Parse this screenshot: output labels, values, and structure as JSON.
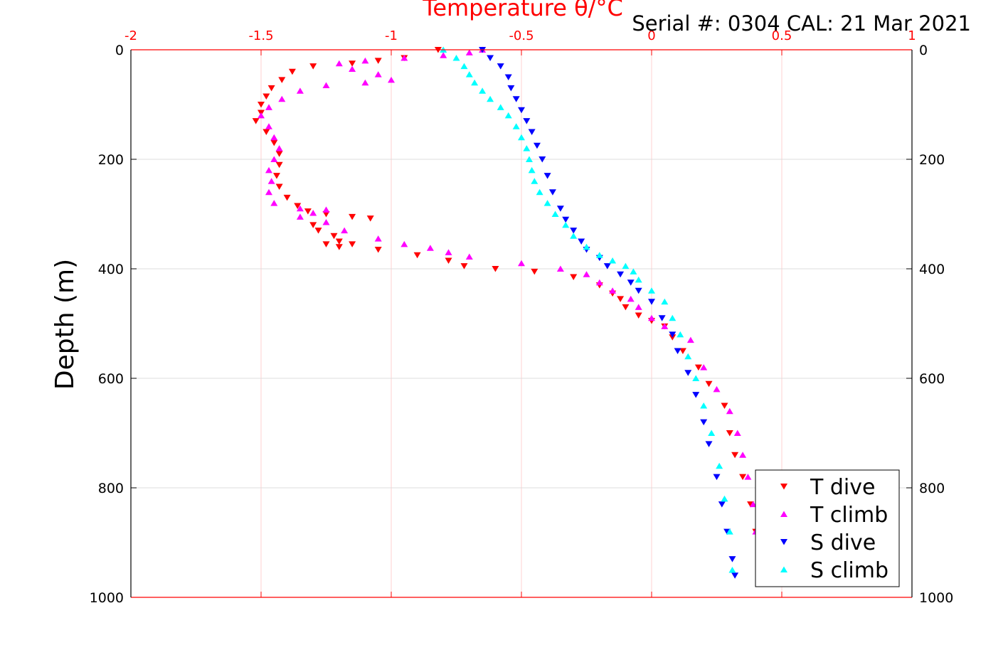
{
  "chart_data": {
    "type": "scatter",
    "title": "Temperature θ/°C",
    "annotation": "Serial #: 0304  CAL: 21 Mar 2021",
    "ylabel": "Depth (m)",
    "xlim": [
      -2,
      1
    ],
    "ylim": [
      0,
      1000
    ],
    "y_reversed": true,
    "x_ticks": [
      "-2",
      "-1.5",
      "-1",
      "-0.5",
      "0",
      "0.5",
      "1"
    ],
    "y_ticks": [
      "0",
      "200",
      "400",
      "600",
      "800",
      "1000"
    ],
    "y_ticks_right": [
      "0",
      "200",
      "400",
      "600",
      "800",
      "1000"
    ],
    "grid": true,
    "legend_position": "bottom-right",
    "series": [
      {
        "name": "T dive",
        "color": "#ff0000",
        "marker": "triangle-down",
        "x": [
          -0.82,
          -0.95,
          -1.05,
          -1.15,
          -1.3,
          -1.38,
          -1.42,
          -1.46,
          -1.48,
          -1.5,
          -1.5,
          -1.52,
          -1.48,
          -1.45,
          -1.43,
          -1.43,
          -1.44,
          -1.43,
          -1.4,
          -1.36,
          -1.32,
          -1.25,
          -1.15,
          -1.08,
          -1.3,
          -1.28,
          -1.22,
          -1.2,
          -1.15,
          -1.25,
          -1.2,
          -1.05,
          -0.9,
          -0.78,
          -0.72,
          -0.6,
          -0.45,
          -0.3,
          -0.2,
          -0.15,
          -0.12,
          -0.1,
          -0.05,
          0.0,
          0.05,
          0.08,
          0.12,
          0.18,
          0.22,
          0.28,
          0.3,
          0.32,
          0.35,
          0.38,
          0.4
        ],
        "y": [
          0,
          15,
          20,
          25,
          30,
          40,
          55,
          70,
          85,
          100,
          115,
          130,
          150,
          170,
          190,
          210,
          230,
          250,
          270,
          285,
          295,
          300,
          305,
          308,
          320,
          330,
          340,
          350,
          355,
          355,
          360,
          365,
          375,
          385,
          395,
          400,
          405,
          415,
          430,
          445,
          455,
          470,
          485,
          495,
          505,
          525,
          550,
          580,
          610,
          650,
          700,
          740,
          780,
          830,
          880
        ]
      },
      {
        "name": "T climb",
        "color": "#ff00ff",
        "marker": "triangle-up",
        "x": [
          -0.65,
          -0.7,
          -0.8,
          -0.95,
          -1.1,
          -1.2,
          -1.15,
          -1.05,
          -1.0,
          -1.1,
          -1.25,
          -1.35,
          -1.42,
          -1.47,
          -1.5,
          -1.47,
          -1.45,
          -1.43,
          -1.45,
          -1.47,
          -1.46,
          -1.47,
          -1.45,
          -1.35,
          -1.25,
          -1.3,
          -1.35,
          -1.25,
          -1.18,
          -1.05,
          -0.95,
          -0.85,
          -0.78,
          -0.7,
          -0.5,
          -0.35,
          -0.25,
          -0.2,
          -0.15,
          -0.08,
          -0.05,
          0.0,
          0.05,
          0.15,
          0.2,
          0.25,
          0.3,
          0.33,
          0.35,
          0.37,
          0.39,
          0.4
        ],
        "y": [
          0,
          5,
          10,
          15,
          20,
          25,
          35,
          45,
          55,
          60,
          65,
          75,
          90,
          105,
          120,
          140,
          160,
          180,
          200,
          220,
          240,
          260,
          280,
          290,
          292,
          298,
          305,
          315,
          330,
          345,
          355,
          362,
          370,
          378,
          390,
          400,
          410,
          425,
          440,
          455,
          470,
          490,
          505,
          530,
          580,
          620,
          660,
          700,
          740,
          780,
          830,
          880
        ]
      },
      {
        "name": "S dive",
        "color": "#0000ff",
        "marker": "triangle-down",
        "x": [
          -0.65,
          -0.62,
          -0.58,
          -0.55,
          -0.54,
          -0.52,
          -0.5,
          -0.48,
          -0.46,
          -0.44,
          -0.42,
          -0.4,
          -0.38,
          -0.35,
          -0.33,
          -0.3,
          -0.27,
          -0.25,
          -0.2,
          -0.17,
          -0.12,
          -0.08,
          -0.05,
          0.0,
          0.04,
          0.08,
          0.1,
          0.14,
          0.17,
          0.2,
          0.22,
          0.25,
          0.27,
          0.29,
          0.31,
          0.32
        ],
        "y": [
          0,
          15,
          30,
          50,
          70,
          90,
          110,
          130,
          150,
          175,
          200,
          230,
          260,
          290,
          310,
          330,
          350,
          365,
          380,
          395,
          410,
          425,
          440,
          460,
          490,
          520,
          550,
          590,
          630,
          680,
          720,
          780,
          830,
          880,
          930,
          960
        ]
      },
      {
        "name": "S climb",
        "color": "#00ffff",
        "marker": "triangle-up",
        "x": [
          -0.8,
          -0.75,
          -0.72,
          -0.7,
          -0.68,
          -0.65,
          -0.62,
          -0.58,
          -0.55,
          -0.52,
          -0.5,
          -0.48,
          -0.47,
          -0.46,
          -0.45,
          -0.43,
          -0.4,
          -0.37,
          -0.33,
          -0.3,
          -0.25,
          -0.2,
          -0.15,
          -0.1,
          -0.07,
          -0.05,
          0.0,
          0.05,
          0.08,
          0.11,
          0.14,
          0.17,
          0.2,
          0.23,
          0.26,
          0.28,
          0.3,
          0.31
        ],
        "y": [
          0,
          15,
          30,
          45,
          60,
          75,
          90,
          105,
          120,
          140,
          160,
          180,
          200,
          220,
          240,
          260,
          280,
          300,
          320,
          340,
          360,
          375,
          385,
          395,
          405,
          420,
          440,
          460,
          490,
          520,
          560,
          600,
          650,
          700,
          760,
          820,
          880,
          950
        ]
      }
    ]
  }
}
